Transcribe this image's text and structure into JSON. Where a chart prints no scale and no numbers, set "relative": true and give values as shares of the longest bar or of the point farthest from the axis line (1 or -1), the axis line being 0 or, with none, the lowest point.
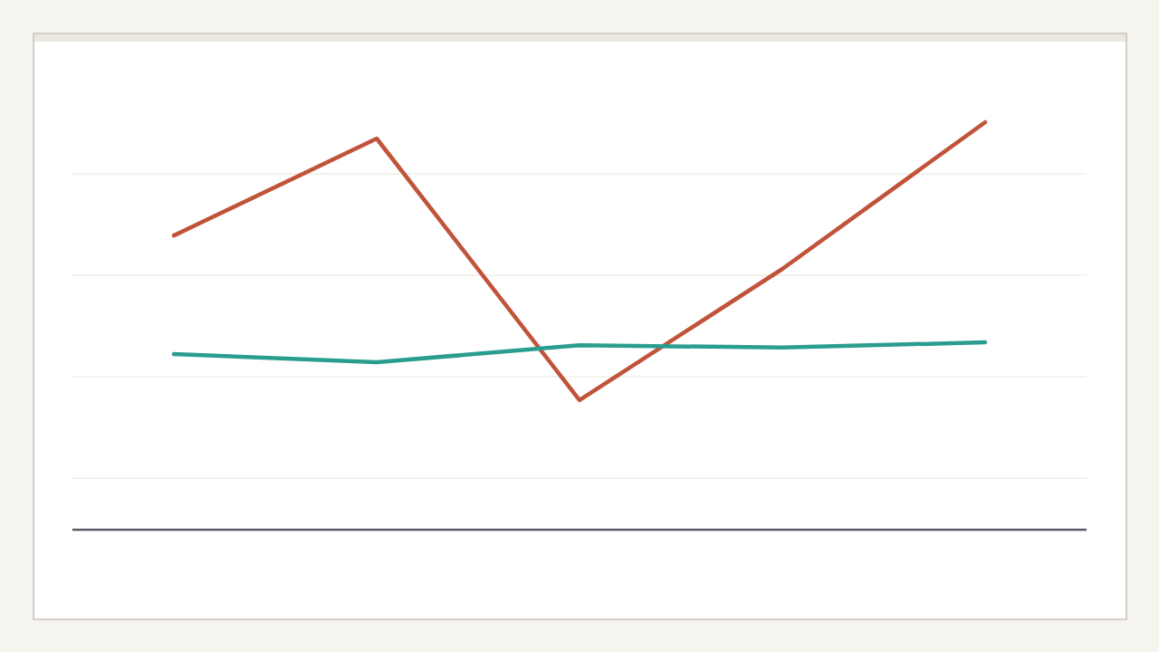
{
  "chart_data": {
    "type": "line",
    "relative": true,
    "grid": true,
    "marker": "none",
    "line_style": "solid",
    "categories": [
      null,
      null,
      null,
      null,
      null
    ],
    "series": [
      {
        "color": "#c0533a",
        "values": [
          0.722,
          0.96,
          0.318,
          0.64,
          1.0
        ]
      },
      {
        "color": "#2a9d8f",
        "values": [
          0.431,
          0.411,
          0.453,
          0.447,
          0.46
        ]
      }
    ]
  }
}
